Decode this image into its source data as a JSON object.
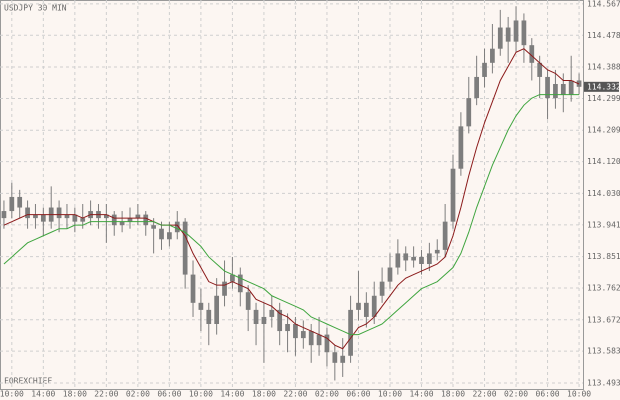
{
  "chart_data": {
    "type": "candlestick",
    "title": "USDJPY 30 MIN",
    "watermark": "FOREXCHIEF",
    "categories": [
      null,
      "10:00",
      null,
      null,
      null,
      "14:00",
      null,
      null,
      null,
      "18:00",
      null,
      null,
      null,
      "22:00",
      null,
      null,
      null,
      "02:00",
      null,
      null,
      null,
      "06:00",
      null,
      null,
      null,
      "10:00",
      null,
      null,
      null,
      "14:00",
      null,
      null,
      null,
      "18:00",
      null,
      null,
      null,
      "22:00",
      null,
      null,
      null,
      "02:00",
      null,
      null,
      null,
      "06:00",
      null,
      null,
      null,
      "10:00",
      null,
      null,
      null,
      "14:00",
      null,
      null,
      null,
      "18:00",
      null,
      null,
      null,
      "22:00",
      null,
      null,
      null,
      "02:00",
      null,
      null,
      null,
      "06:00",
      null,
      null,
      null,
      "10:00"
    ],
    "open": [
      113.96,
      113.98,
      114.02,
      113.99,
      113.96,
      113.97,
      113.95,
      113.99,
      113.96,
      113.97,
      113.95,
      113.96,
      113.98,
      113.96,
      113.97,
      113.94,
      113.95,
      113.96,
      113.97,
      113.94,
      113.93,
      113.9,
      113.92,
      113.95,
      113.8,
      113.72,
      113.7,
      113.66,
      113.74,
      113.78,
      113.8,
      113.75,
      113.7,
      113.66,
      113.68,
      113.7,
      113.64,
      113.66,
      113.62,
      113.64,
      113.6,
      113.63,
      113.58,
      113.55,
      113.57,
      113.7,
      113.72,
      113.68,
      113.74,
      113.78,
      113.82,
      113.86,
      113.84,
      113.85,
      113.83,
      113.86,
      113.87,
      113.95,
      114.1,
      114.22,
      114.3,
      114.36,
      114.4,
      114.44,
      114.5,
      114.46,
      114.52,
      114.45,
      114.4,
      114.36,
      114.3,
      114.34,
      114.31,
      114.35
    ],
    "high": [
      114.01,
      114.06,
      114.04,
      114.01,
      114.0,
      113.99,
      114.05,
      114.01,
      114.0,
      113.99,
      114.0,
      114.01,
      114.0,
      114.0,
      113.98,
      113.98,
      113.99,
      114.0,
      113.98,
      113.96,
      113.95,
      113.95,
      113.98,
      113.96,
      113.84,
      113.76,
      113.72,
      113.79,
      113.84,
      113.85,
      113.82,
      113.77,
      113.72,
      113.72,
      113.74,
      113.72,
      113.69,
      113.68,
      113.67,
      113.66,
      113.68,
      113.65,
      113.6,
      113.62,
      113.74,
      113.81,
      113.75,
      113.78,
      113.82,
      113.86,
      113.9,
      113.88,
      113.88,
      113.87,
      113.89,
      113.9,
      114.0,
      114.14,
      114.26,
      114.36,
      114.42,
      114.44,
      114.51,
      114.55,
      114.53,
      114.56,
      114.54,
      114.47,
      114.42,
      114.38,
      114.38,
      114.37,
      114.42,
      114.37
    ],
    "low": [
      113.93,
      113.96,
      113.96,
      113.93,
      113.93,
      113.91,
      113.93,
      113.92,
      113.93,
      113.92,
      113.93,
      113.94,
      113.93,
      113.89,
      113.91,
      113.92,
      113.93,
      113.94,
      113.91,
      113.86,
      113.87,
      113.88,
      113.9,
      113.76,
      113.68,
      113.64,
      113.6,
      113.63,
      113.71,
      113.76,
      113.71,
      113.64,
      113.6,
      113.55,
      113.65,
      113.6,
      113.58,
      113.57,
      113.59,
      113.55,
      113.57,
      113.54,
      113.5,
      113.51,
      113.55,
      113.67,
      113.65,
      113.66,
      113.72,
      113.76,
      113.8,
      113.81,
      113.82,
      113.8,
      113.81,
      113.84,
      113.85,
      113.93,
      114.08,
      114.2,
      114.28,
      114.33,
      114.37,
      114.42,
      114.4,
      114.43,
      114.4,
      114.35,
      114.3,
      114.24,
      114.27,
      114.26,
      114.29,
      114.31
    ],
    "close": [
      113.98,
      114.02,
      113.99,
      113.96,
      113.97,
      113.95,
      113.99,
      113.96,
      113.97,
      113.95,
      113.96,
      113.98,
      113.96,
      113.97,
      113.94,
      113.95,
      113.96,
      113.97,
      113.94,
      113.93,
      113.9,
      113.92,
      113.95,
      113.8,
      113.72,
      113.7,
      113.66,
      113.74,
      113.78,
      113.8,
      113.75,
      113.7,
      113.66,
      113.68,
      113.7,
      113.64,
      113.66,
      113.62,
      113.64,
      113.6,
      113.63,
      113.58,
      113.55,
      113.57,
      113.7,
      113.72,
      113.68,
      113.74,
      113.78,
      113.82,
      113.86,
      113.84,
      113.85,
      113.83,
      113.86,
      113.87,
      113.95,
      114.1,
      114.22,
      114.3,
      114.36,
      114.4,
      114.44,
      114.5,
      114.46,
      114.52,
      114.45,
      114.4,
      114.36,
      114.3,
      114.34,
      114.31,
      114.35,
      114.332
    ],
    "candle_color": "#7d7d7d",
    "lines": [
      {
        "color": "#8b1a1a",
        "values": [
          113.94,
          113.95,
          113.96,
          113.97,
          113.97,
          113.97,
          113.97,
          113.97,
          113.97,
          113.97,
          113.96,
          113.97,
          113.97,
          113.97,
          113.96,
          113.96,
          113.96,
          113.96,
          113.96,
          113.95,
          113.94,
          113.94,
          113.94,
          113.91,
          113.86,
          113.82,
          113.78,
          113.77,
          113.77,
          113.78,
          113.77,
          113.76,
          113.73,
          113.72,
          113.71,
          113.69,
          113.68,
          113.66,
          113.65,
          113.64,
          113.63,
          113.62,
          113.6,
          113.59,
          113.62,
          113.65,
          113.66,
          113.68,
          113.71,
          113.74,
          113.77,
          113.79,
          113.8,
          113.81,
          113.82,
          113.83,
          113.85,
          113.91,
          113.99,
          114.08,
          114.16,
          114.23,
          114.29,
          114.35,
          114.39,
          114.43,
          114.44,
          114.42,
          114.4,
          114.38,
          114.37,
          114.35,
          114.35,
          114.34
        ]
      },
      {
        "color": "#3fa53f",
        "values": [
          113.83,
          113.85,
          113.87,
          113.89,
          113.9,
          113.91,
          113.92,
          113.93,
          113.93,
          113.94,
          113.94,
          113.95,
          113.95,
          113.95,
          113.95,
          113.95,
          113.95,
          113.95,
          113.95,
          113.95,
          113.94,
          113.94,
          113.93,
          113.92,
          113.9,
          113.88,
          113.85,
          113.83,
          113.81,
          113.8,
          113.79,
          113.78,
          113.77,
          113.76,
          113.74,
          113.73,
          113.72,
          113.71,
          113.7,
          113.68,
          113.67,
          113.66,
          113.65,
          113.64,
          113.63,
          113.63,
          113.64,
          113.65,
          113.66,
          113.68,
          113.7,
          113.72,
          113.74,
          113.76,
          113.77,
          113.78,
          113.8,
          113.82,
          113.86,
          113.92,
          113.99,
          114.05,
          114.11,
          114.16,
          114.21,
          114.25,
          114.28,
          114.3,
          114.31,
          114.31,
          114.31,
          114.31,
          114.31,
          114.31
        ]
      }
    ],
    "last_price": 114.332,
    "ylim": [
      113.473,
      114.578
    ],
    "yticks": [
      114.567,
      114.478,
      114.388,
      114.299,
      {
        "value": 114.209,
        "label": "114.209"
      },
      {
        "value": 114.12,
        "label": "114.120"
      },
      {
        "value": 114.03,
        "label": "114.030"
      },
      113.941,
      113.851,
      113.762,
      113.672,
      113.583,
      113.493
    ],
    "grid": true
  }
}
